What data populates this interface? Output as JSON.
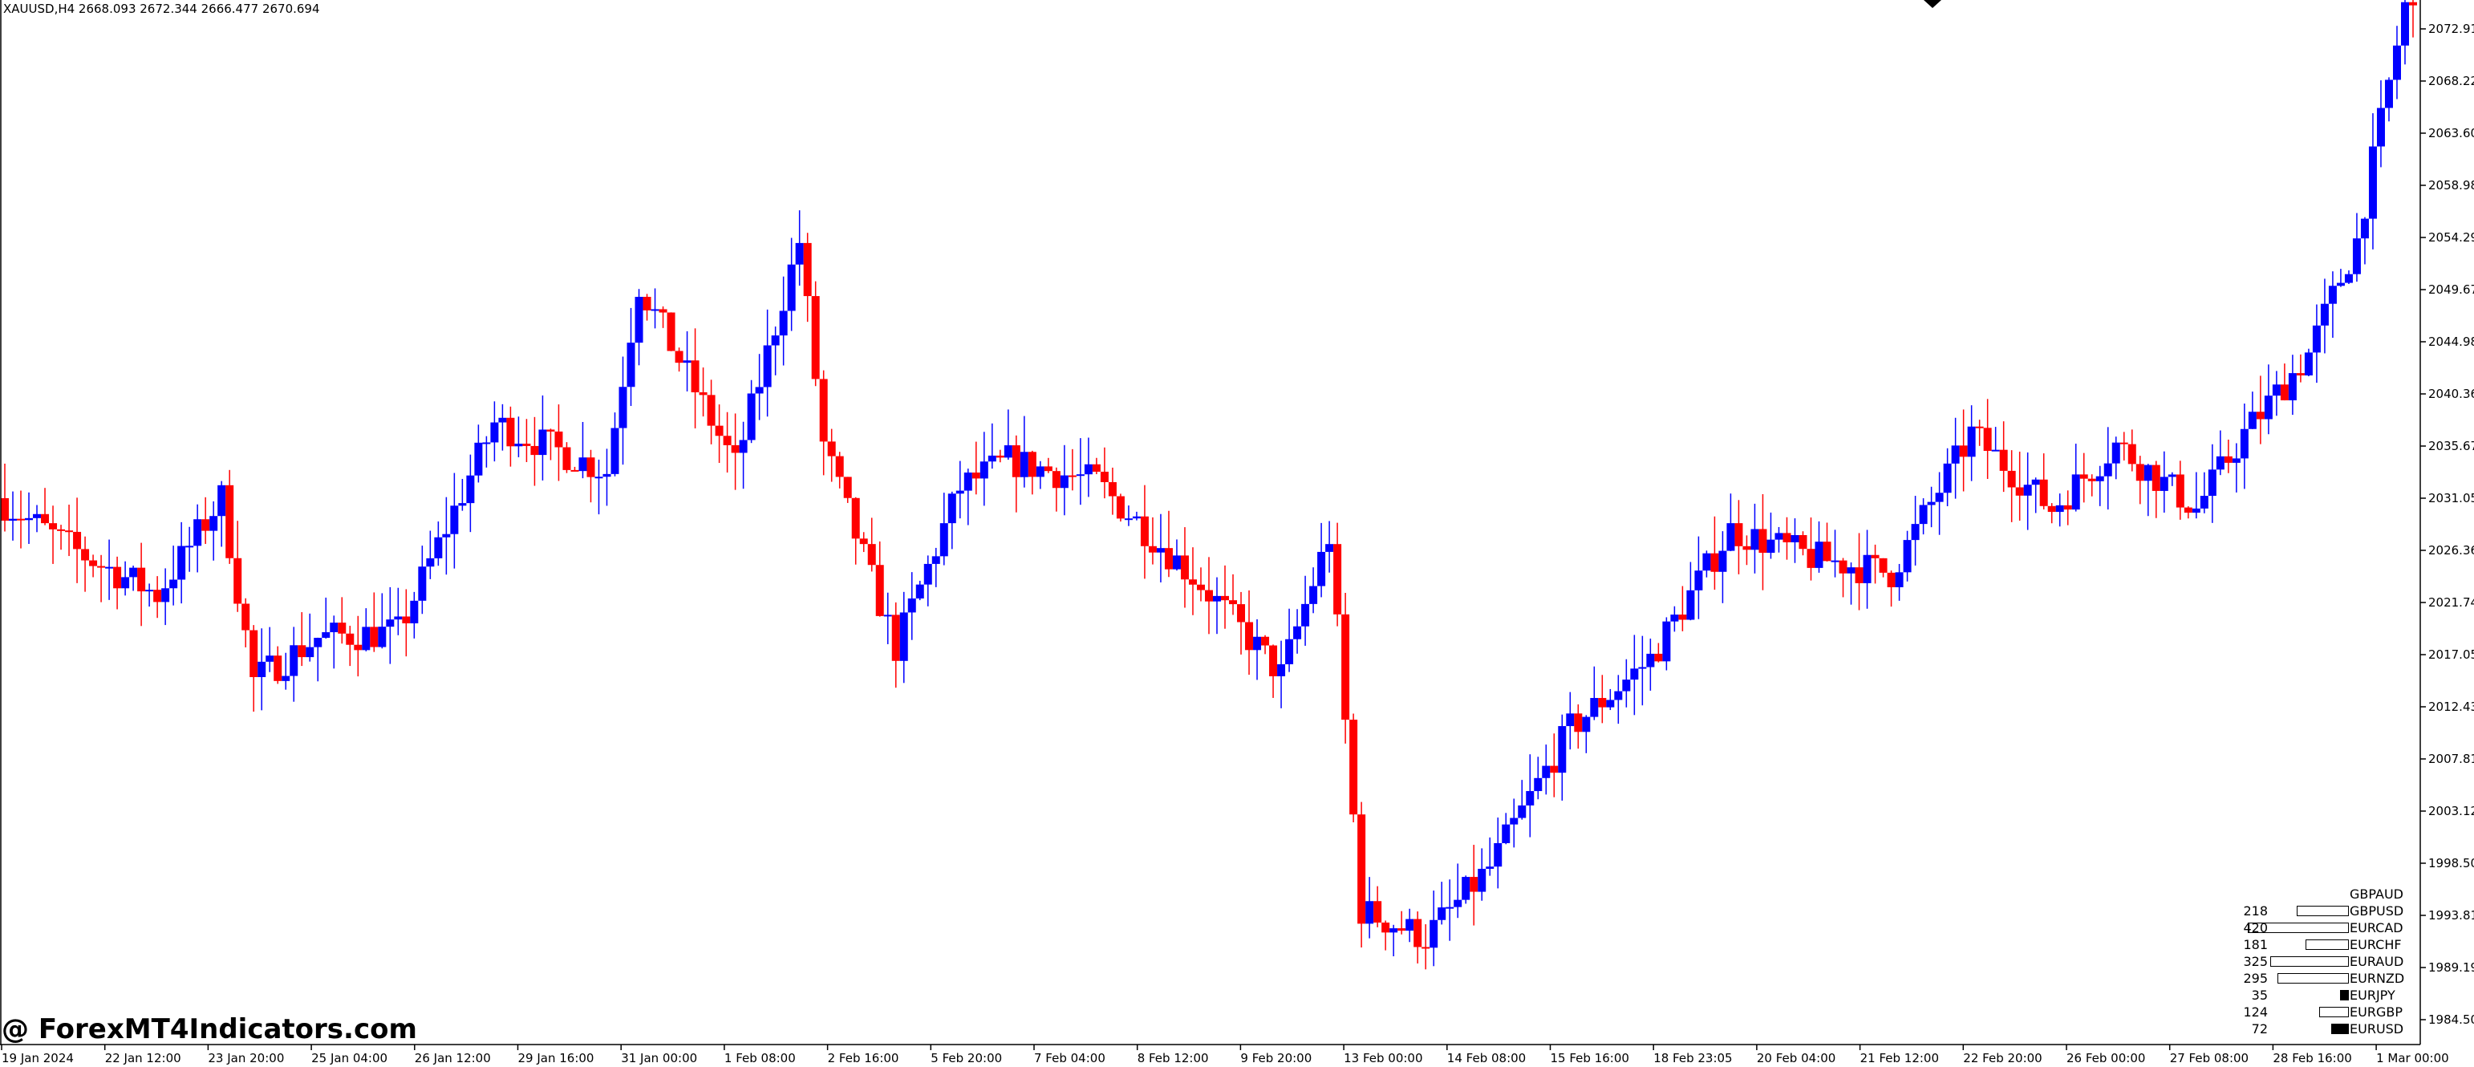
{
  "symbol_label": "XAUUSD,H4  2668.093 2672.344 2666.477 2670.694",
  "watermark": "@ ForexMT4Indicators.com",
  "colors": {
    "bull": "#0000ff",
    "bear": "#ff0000",
    "axis": "#000000"
  },
  "chart_data": {
    "type": "candlestick",
    "instrument": "XAUUSD",
    "timeframe": "H4",
    "ylim": [
      1981.0,
      2077.0
    ],
    "y_ticks": [
      "2072.910",
      "2068.220",
      "2063.600",
      "2058.980",
      "2054.290",
      "2049.670",
      "2044.980",
      "2040.360",
      "2035.670",
      "2031.050",
      "2026.360",
      "2021.740",
      "2017.050",
      "2012.430",
      "2007.810",
      "2003.120",
      "1998.500",
      "1993.810",
      "1989.190",
      "1984.500"
    ],
    "x_ticks": [
      "19 Jan 2024",
      "22 Jan 12:00",
      "23 Jan 20:00",
      "25 Jan 04:00",
      "26 Jan 12:00",
      "29 Jan 16:00",
      "31 Jan 00:00",
      "1 Feb 08:00",
      "2 Feb 16:00",
      "5 Feb 20:00",
      "7 Feb 04:00",
      "8 Feb 12:00",
      "9 Feb 20:00",
      "13 Feb 00:00",
      "14 Feb 08:00",
      "15 Feb 16:00",
      "18 Feb 23:05",
      "20 Feb 04:00",
      "21 Feb 12:00",
      "22 Feb 20:00",
      "26 Feb 00:00",
      "27 Feb 08:00",
      "28 Feb 16:00",
      "1 Mar 00:00"
    ],
    "anchors": [
      [
        0,
        2031.0
      ],
      [
        10,
        2026.0
      ],
      [
        20,
        2022.0
      ],
      [
        28,
        2031.0
      ],
      [
        32,
        2014.0
      ],
      [
        40,
        2018.0
      ],
      [
        50,
        2018.5
      ],
      [
        62,
        2038.0
      ],
      [
        76,
        2033.5
      ],
      [
        80,
        2051.0
      ],
      [
        92,
        2034.0
      ],
      [
        100,
        2055.0
      ],
      [
        103,
        2036.0
      ],
      [
        112,
        2017.0
      ],
      [
        120,
        2032.0
      ],
      [
        126,
        2034.5
      ],
      [
        137,
        2032.5
      ],
      [
        150,
        2023.0
      ],
      [
        160,
        2014.5
      ],
      [
        166,
        2027.5
      ],
      [
        170,
        1992.5
      ],
      [
        178,
        1990.0
      ],
      [
        186,
        1996.5
      ],
      [
        196,
        2009.5
      ],
      [
        206,
        2016.0
      ],
      [
        216,
        2028.0
      ],
      [
        226,
        2025.5
      ],
      [
        236,
        2024.0
      ],
      [
        246,
        2037.0
      ],
      [
        256,
        2030.0
      ],
      [
        264,
        2036.0
      ],
      [
        274,
        2030.0
      ],
      [
        280,
        2037.0
      ],
      [
        288,
        2044.5
      ],
      [
        294,
        2055.0
      ],
      [
        300,
        2077.0
      ]
    ]
  },
  "strength_panel": {
    "rows": [
      {
        "name": "GBPAUD",
        "value": "",
        "fill": false,
        "width": 0
      },
      {
        "name": "GBPUSD",
        "value": "218",
        "fill": false,
        "width": 0.218
      },
      {
        "name": "EURCAD",
        "value": "420",
        "fill": false,
        "width": 0.42
      },
      {
        "name": "EURCHF",
        "value": "181",
        "fill": false,
        "width": 0.181
      },
      {
        "name": "EURAUD",
        "value": "325",
        "fill": false,
        "width": 0.325
      },
      {
        "name": "EURNZD",
        "value": "295",
        "fill": false,
        "width": 0.295
      },
      {
        "name": "EURJPY",
        "value": "35",
        "fill": true,
        "width": 0.035
      },
      {
        "name": "EURGBP",
        "value": "124",
        "fill": false,
        "width": 0.124
      },
      {
        "name": "EURUSD",
        "value": "72",
        "fill": true,
        "width": 0.072
      }
    ]
  }
}
